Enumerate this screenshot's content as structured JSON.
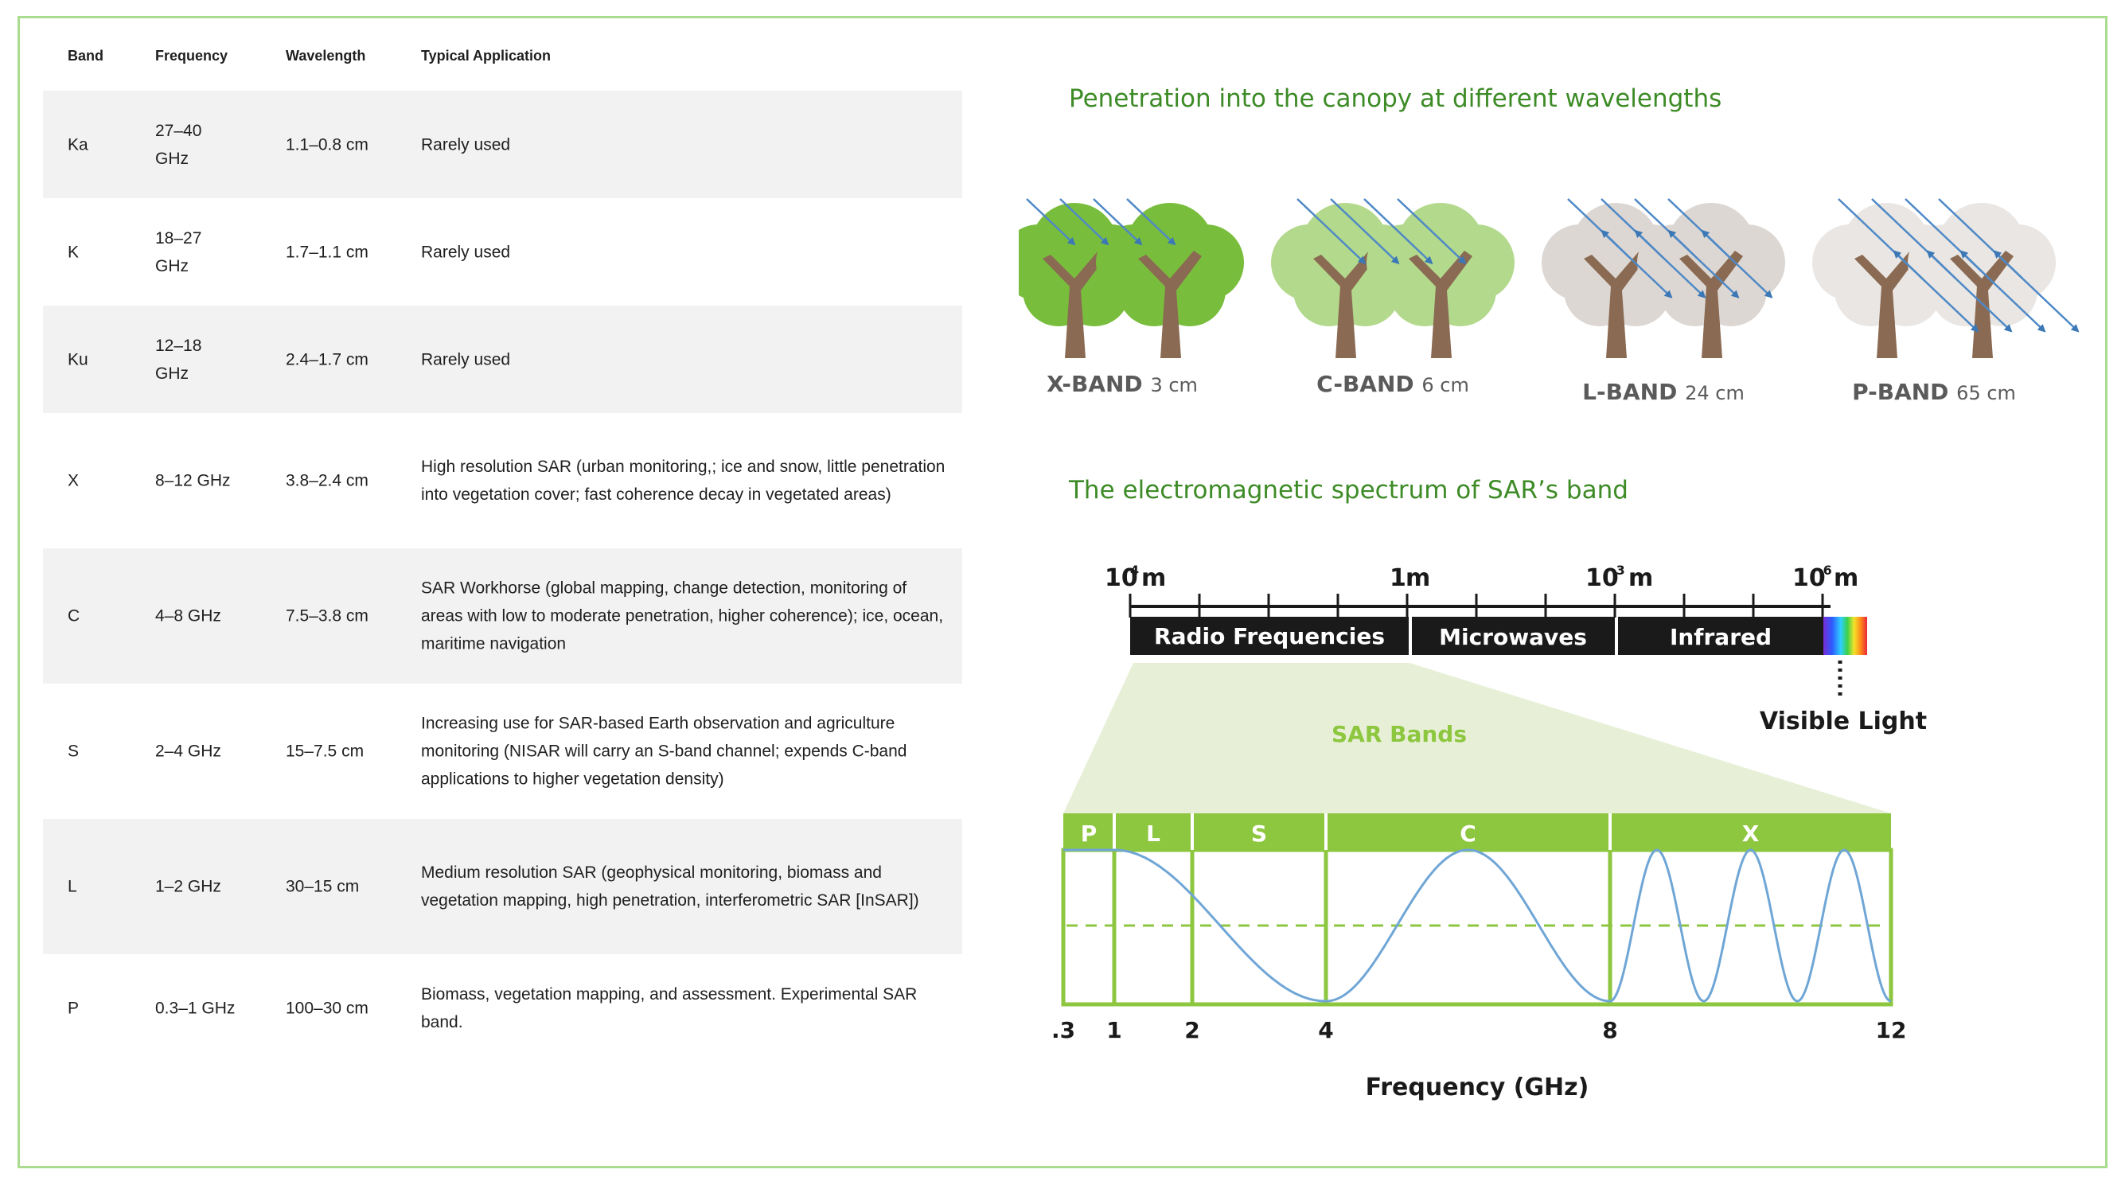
{
  "table": {
    "headers": [
      "Band",
      "Frequency",
      "Wavelength",
      "Typical Application"
    ],
    "rows": [
      {
        "band": "Ka",
        "frequency": "27–40 GHz",
        "wavelength": "1.1–0.8 cm",
        "application": "Rarely used"
      },
      {
        "band": "K",
        "frequency": "18–27 GHz",
        "wavelength": "1.7–1.1 cm",
        "application": "Rarely used"
      },
      {
        "band": "Ku",
        "frequency": "12–18 GHz",
        "wavelength": "2.4–1.7 cm",
        "application": "Rarely used"
      },
      {
        "band": "X",
        "frequency": "8–12 GHz",
        "wavelength": "3.8–2.4 cm",
        "application": "High resolution SAR (urban monitoring,; ice and snow, little penetration into vegetation cover; fast coherence decay in vegetated areas)"
      },
      {
        "band": "C",
        "frequency": "4–8 GHz",
        "wavelength": "7.5–3.8 cm",
        "application": "SAR Workhorse (global mapping, change detection, monitoring of areas with low to moderate penetration, higher coherence); ice, ocean, maritime navigation"
      },
      {
        "band": "S",
        "frequency": "2–4 GHz",
        "wavelength": "15–7.5 cm",
        "application": "Increasing use for SAR-based Earth observation and agriculture monitoring (NISAR will carry an S-band channel; expends C-band applications to higher vegetation density)"
      },
      {
        "band": "L",
        "frequency": "1–2 GHz",
        "wavelength": "30–15 cm",
        "application": "Medium resolution SAR (geophysical monitoring, biomass and vegetation mapping, high penetration, interferometric SAR [InSAR])"
      },
      {
        "band": "P",
        "frequency": "0.3–1 GHz",
        "wavelength": "100–30 cm",
        "application": "Biomass, vegetation mapping, and assessment. Experimental SAR band."
      }
    ]
  },
  "canopy": {
    "title": "Penetration into the canopy at different wavelengths",
    "bands": [
      {
        "name": "X-BAND",
        "wavelength": "3 cm",
        "foliage": "#79bd3c"
      },
      {
        "name": "C-BAND",
        "wavelength": "6 cm",
        "foliage": "#b3d98c"
      },
      {
        "name": "L-BAND",
        "wavelength": "24 cm",
        "foliage": "#ddd7d3"
      },
      {
        "name": "P-BAND",
        "wavelength": "65 cm",
        "foliage": "#e9e6e3"
      }
    ]
  },
  "spectrum": {
    "title": "The electromagnetic spectrum of SAR’s band",
    "scale": [
      {
        "base": "10",
        "exp": "4",
        "unit": "m"
      },
      {
        "base": "1",
        "exp": "",
        "unit": "m"
      },
      {
        "base": "10",
        "exp": "-3",
        "unit": "m"
      },
      {
        "base": "10",
        "exp": "-6",
        "unit": "m"
      }
    ],
    "regions": [
      "Radio Frequencies",
      "Microwaves",
      "Infrared"
    ],
    "visible_label": "Visible Light",
    "sar_label": "SAR Bands",
    "bands": [
      "P",
      "L",
      "S",
      "C",
      "X"
    ],
    "freq_ticks": [
      ".3",
      "1",
      "2",
      "4",
      "8",
      "12"
    ],
    "xlabel": "Frequency (GHz)",
    "colors": {
      "green": "#8dc63f",
      "wave": "#6fa6d6",
      "bar": "#1a1a1a",
      "accent": "#3d8b26"
    }
  }
}
